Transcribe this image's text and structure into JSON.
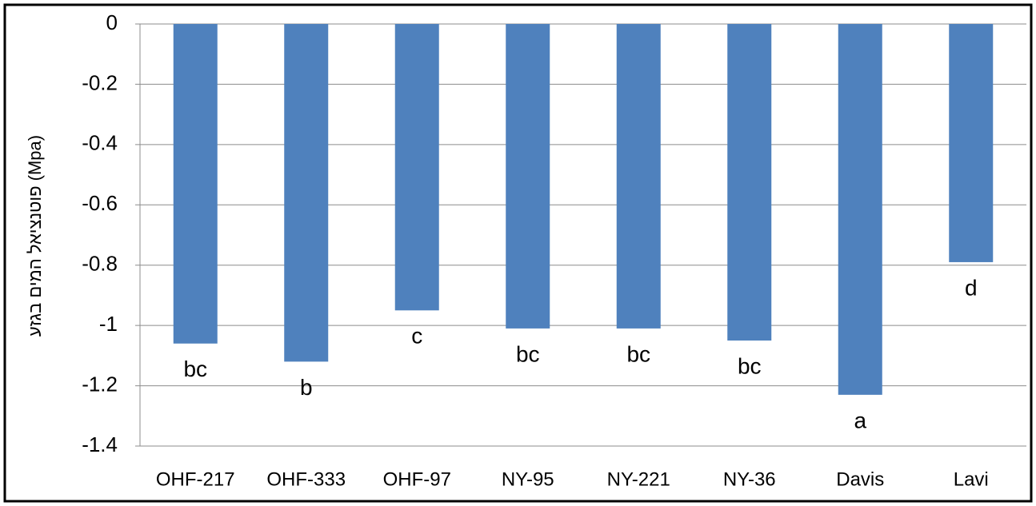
{
  "chart_data": {
    "type": "bar",
    "y_label": "פוטנציאל המים בגזע (Mpa)",
    "categories": [
      "OHF-217",
      "OHF-333",
      "OHF-97",
      "NY-95",
      "NY-221",
      "NY-36",
      "Davis",
      "Lavi"
    ],
    "values": [
      -1.06,
      -1.12,
      -0.95,
      -1.01,
      -1.01,
      -1.05,
      -1.23,
      -0.79
    ],
    "annotations": [
      "bc",
      "b",
      "c",
      "bc",
      "bc",
      "bc",
      "a",
      "d"
    ],
    "color": "#4f81bd",
    "ylim": [
      -1.4,
      0
    ],
    "yticks": [
      0,
      -0.2,
      -0.4,
      -0.6,
      -0.8,
      -1,
      -1.2,
      -1.4
    ],
    "grid": true
  }
}
